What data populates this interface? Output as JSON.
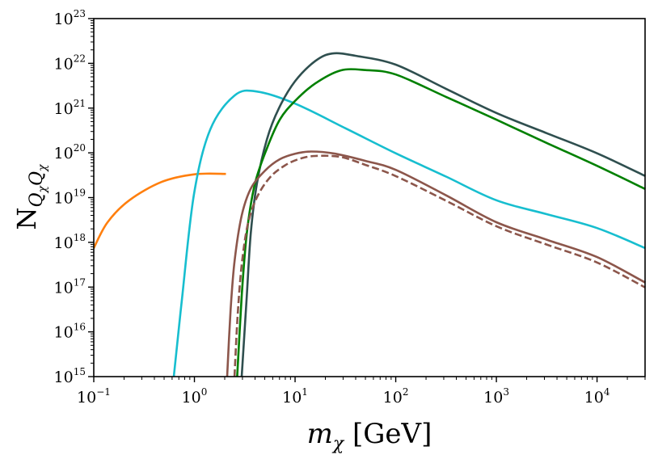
{
  "chart_data": {
    "type": "line",
    "title": "",
    "xlabel": "m_χ [GeV]",
    "xlabel_parts": {
      "symbol": "m",
      "subscript": "χ",
      "unit": " [GeV]"
    },
    "ylabel": "N_{Q_χ Q_χ}",
    "ylabel_parts": {
      "symbol": "N",
      "subscript": "Q",
      "subsub": "χ",
      "subscript2": "Q",
      "subsub2": "χ"
    },
    "xscale": "log",
    "yscale": "log",
    "xlim": [
      0.1,
      30000
    ],
    "ylim": [
      1000000000000000.0,
      1e+23
    ],
    "grid": false,
    "legend": "none",
    "x_ticks": [
      {
        "base": "10",
        "exp": "−1",
        "value": 0.1
      },
      {
        "base": "10",
        "exp": "0",
        "value": 1
      },
      {
        "base": "10",
        "exp": "1",
        "value": 10
      },
      {
        "base": "10",
        "exp": "2",
        "value": 100
      },
      {
        "base": "10",
        "exp": "3",
        "value": 1000
      },
      {
        "base": "10",
        "exp": "4",
        "value": 10000
      }
    ],
    "y_ticks": [
      {
        "base": "10",
        "exp": "15",
        "value": 1000000000000000.0
      },
      {
        "base": "10",
        "exp": "16",
        "value": 1e+16
      },
      {
        "base": "10",
        "exp": "17",
        "value": 1e+17
      },
      {
        "base": "10",
        "exp": "18",
        "value": 1e+18
      },
      {
        "base": "10",
        "exp": "19",
        "value": 1e+19
      },
      {
        "base": "10",
        "exp": "20",
        "value": 1e+20
      },
      {
        "base": "10",
        "exp": "21",
        "value": 1e+21
      },
      {
        "base": "10",
        "exp": "22",
        "value": 1e+22
      },
      {
        "base": "10",
        "exp": "23",
        "value": 1e+23
      }
    ],
    "series": [
      {
        "name": "orange",
        "color": "#ff7f0e",
        "dashed": false,
        "log10_x": [
          -1.0,
          -0.863,
          -0.647,
          -0.325,
          0.0,
          0.313
        ],
        "log10_y": [
          17.87,
          18.45,
          18.94,
          19.35,
          19.52,
          19.53
        ]
      },
      {
        "name": "cyan",
        "color": "#17becf",
        "dashed": false,
        "log10_x": [
          -0.205,
          -0.124,
          -0.004,
          0.157,
          0.398,
          0.622,
          1.0,
          1.5,
          2.0,
          2.5,
          3.0,
          3.5,
          4.0,
          4.48
        ],
        "log10_y": [
          15.0,
          16.73,
          19.08,
          20.52,
          21.28,
          21.37,
          21.1,
          20.55,
          19.99,
          19.47,
          18.94,
          18.63,
          18.32,
          17.87
        ]
      },
      {
        "name": "dark-slate",
        "color": "#2f4f4f",
        "dashed": false,
        "log10_x": [
          0.47,
          0.52,
          0.56,
          0.62,
          0.72,
          0.84,
          1.0,
          1.2,
          1.37,
          1.6,
          2.0,
          2.5,
          3.0,
          3.5,
          4.0,
          4.48
        ],
        "log10_y": [
          15.0,
          16.8,
          18.2,
          19.3,
          20.3,
          21.0,
          21.6,
          22.05,
          22.22,
          22.17,
          21.97,
          21.43,
          20.89,
          20.44,
          19.99,
          19.48
        ],
        "note": "peak near x≈23 GeV"
      },
      {
        "name": "green",
        "color": "#008000",
        "dashed": false,
        "log10_x": [
          0.425,
          0.47,
          0.52,
          0.6,
          0.72,
          0.85,
          1.0,
          1.2,
          1.45,
          1.7,
          2.0,
          2.5,
          3.0,
          3.5,
          4.0,
          4.48
        ],
        "log10_y": [
          15.0,
          16.8,
          18.2,
          19.3,
          20.1,
          20.75,
          21.16,
          21.55,
          21.84,
          21.85,
          21.75,
          21.25,
          20.74,
          20.22,
          19.71,
          19.19
        ]
      },
      {
        "name": "brown-solid",
        "color": "#8c564b",
        "dashed": false,
        "log10_x": [
          0.325,
          0.36,
          0.4,
          0.47,
          0.56,
          0.7,
          0.85,
          1.0,
          1.16,
          1.4,
          1.7,
          2.0,
          2.5,
          3.0,
          3.5,
          4.0,
          4.48
        ],
        "log10_y": [
          15.0,
          16.5,
          17.6,
          18.6,
          19.2,
          19.6,
          19.86,
          19.98,
          20.03,
          19.98,
          19.82,
          19.62,
          19.05,
          18.45,
          18.06,
          17.67,
          17.1
        ]
      },
      {
        "name": "brown-dashed",
        "color": "#8c564b",
        "dashed": true,
        "log10_x": [
          0.398,
          0.43,
          0.47,
          0.53,
          0.62,
          0.75,
          0.9,
          1.05,
          1.2,
          1.45,
          1.7,
          2.0,
          2.5,
          3.0,
          3.5,
          4.0,
          4.48
        ],
        "log10_y": [
          15.0,
          16.4,
          17.5,
          18.4,
          19.0,
          19.45,
          19.72,
          19.87,
          19.93,
          19.91,
          19.73,
          19.48,
          18.93,
          18.36,
          17.95,
          17.55,
          16.99
        ]
      }
    ]
  }
}
